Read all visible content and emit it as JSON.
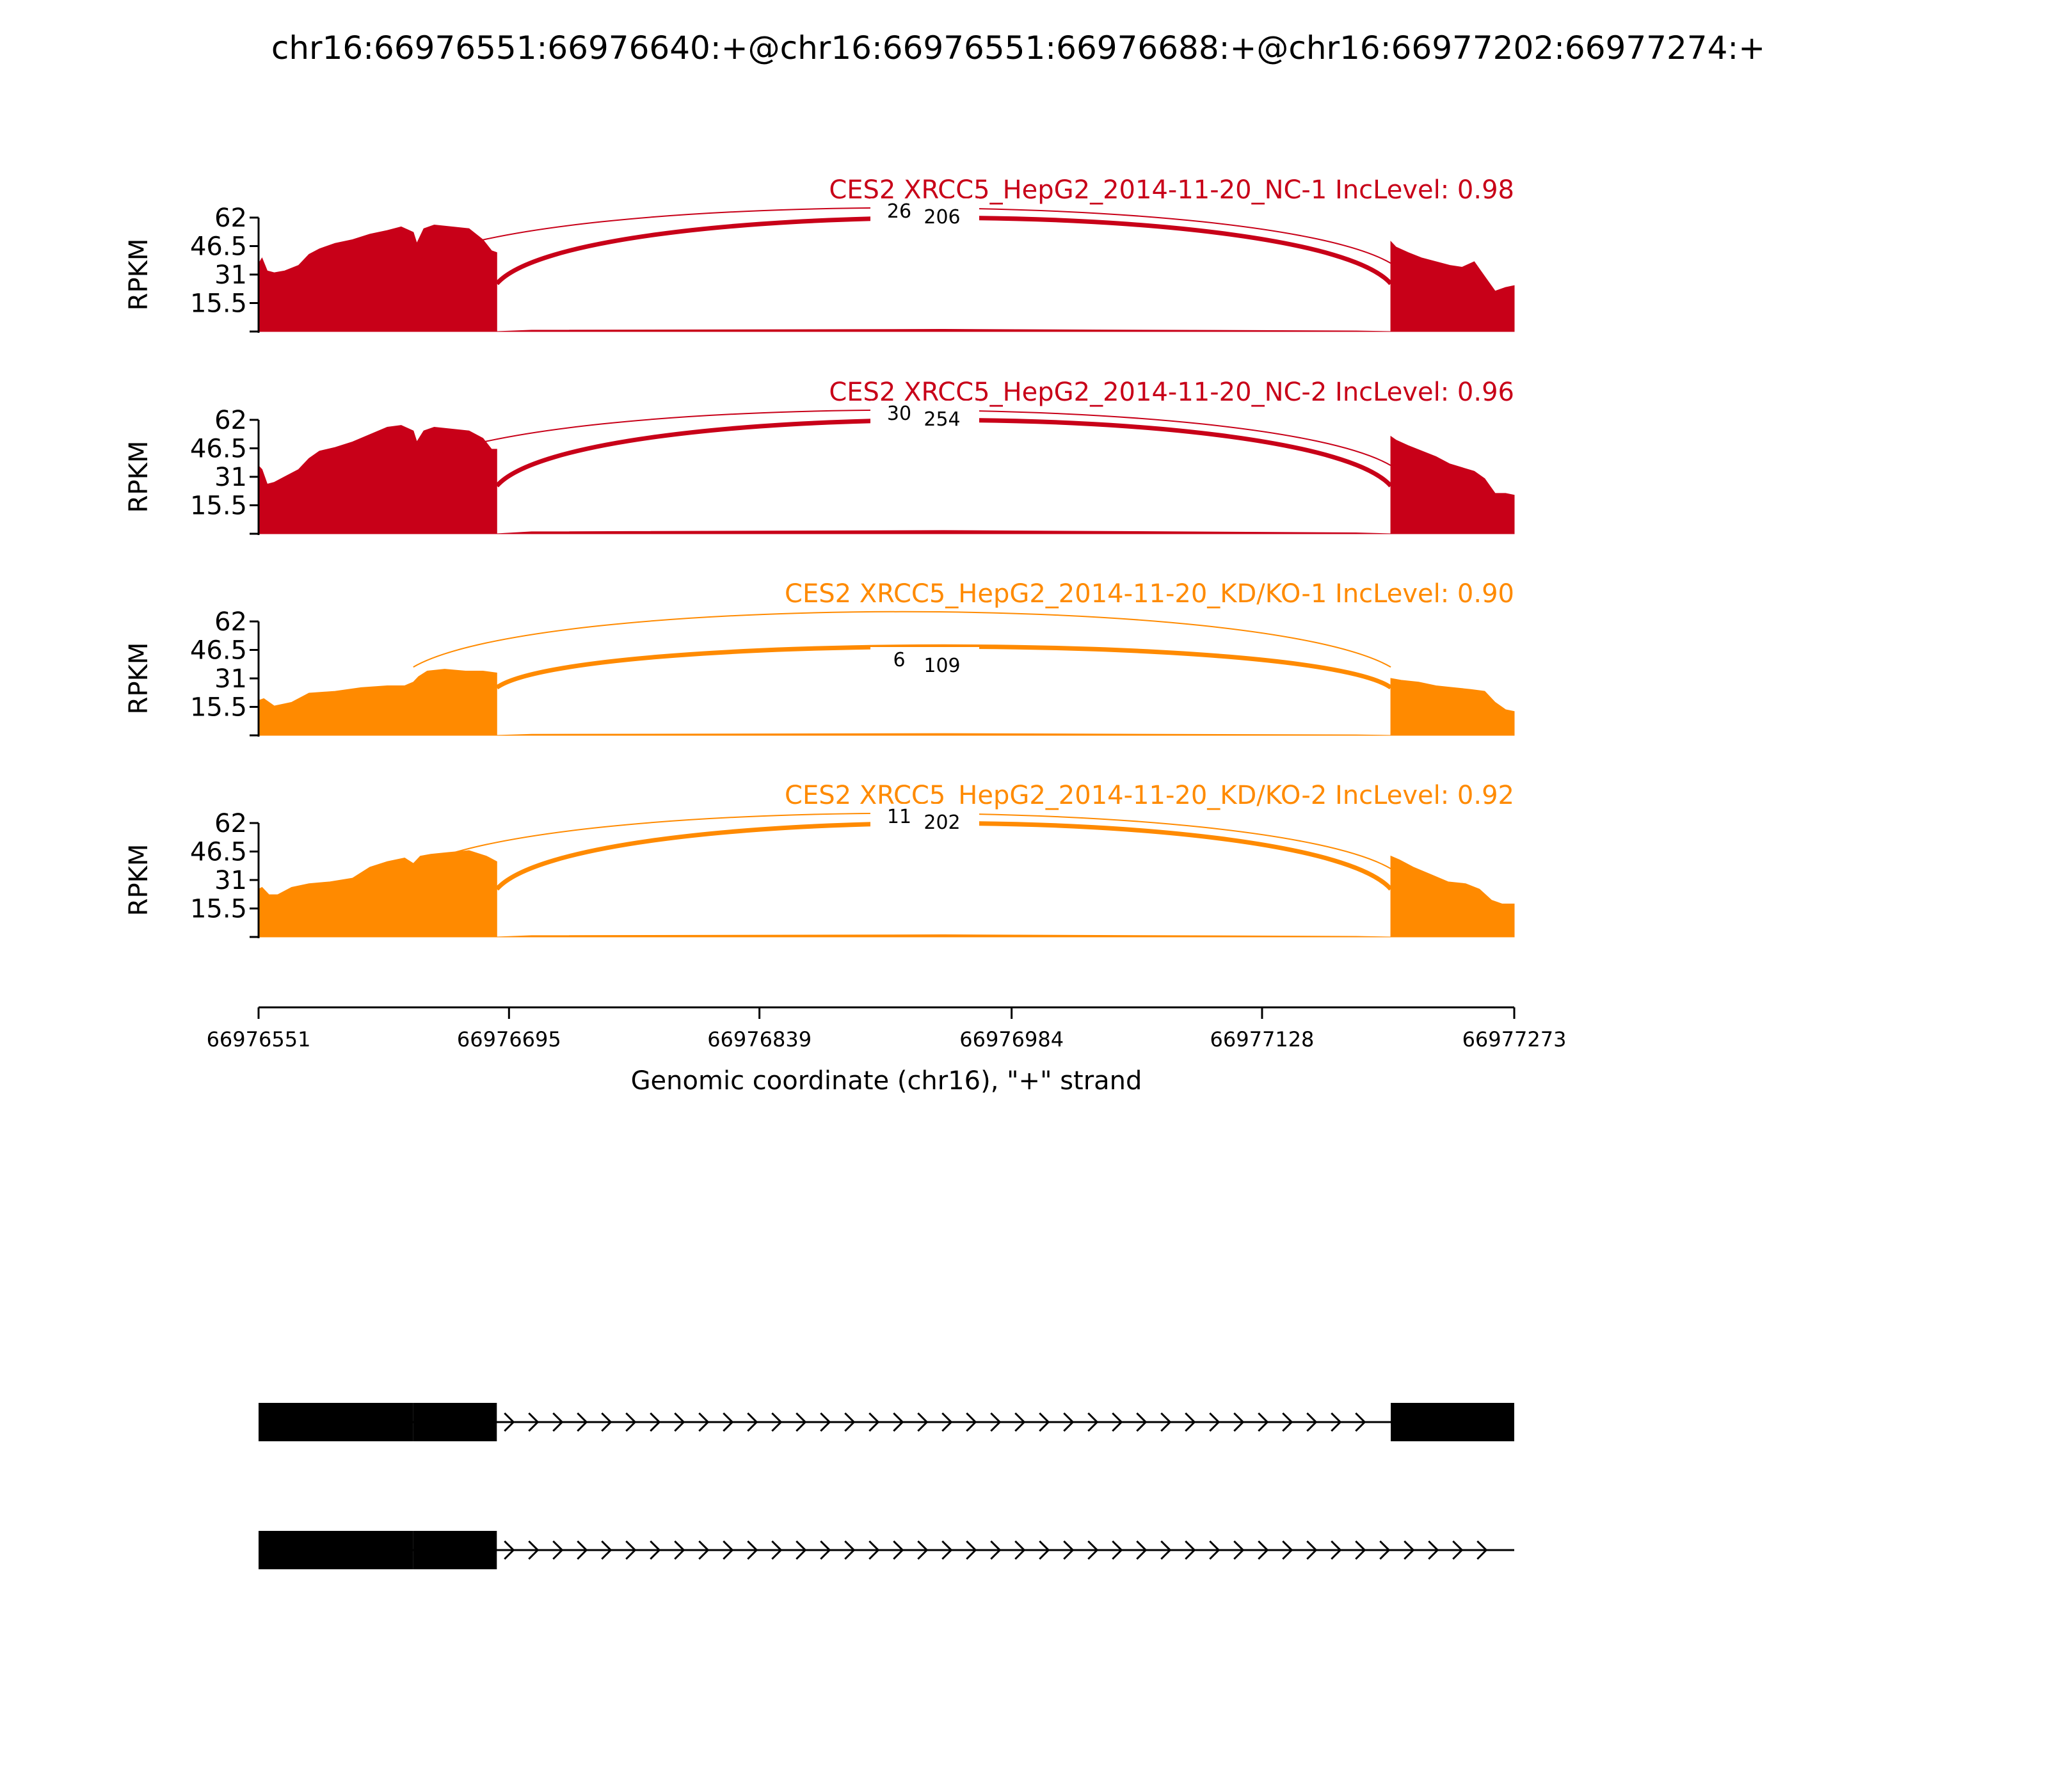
{
  "chart_data": {
    "type": "area",
    "title": "chr16:66976551:66976640:+@chr16:66976551:66976688:+@chr16:66977202:66977274:+",
    "ylabel": "RPKM",
    "xlabel": "Genomic coordinate (chr16), \"+\" strand",
    "ylim": [
      0,
      62
    ],
    "yticks": [
      "62",
      "46.5",
      "31",
      "15.5"
    ],
    "xlim": [
      66976551,
      66977273
    ],
    "xticks": [
      {
        "value": 66976551,
        "label": "66976551"
      },
      {
        "value": 66976695,
        "label": "66976695"
      },
      {
        "value": 66976839,
        "label": "66976839"
      },
      {
        "value": 66976984,
        "label": "66976984"
      },
      {
        "value": 66977128,
        "label": "66977128"
      },
      {
        "value": 66977273,
        "label": "66977273"
      }
    ],
    "colors": {
      "NC": "#C80018",
      "KD": "#FF8A00"
    },
    "series": [
      {
        "name": "CES2 XRCC5_HepG2_2014-11-20_NC-1 IncLevel: 0.98",
        "color": "#C80018",
        "coverage_x": [
          66976551,
          66976553,
          66976556,
          66976560,
          66976566,
          66976574,
          66976580,
          66976586,
          66976595,
          66976605,
          66976615,
          66976625,
          66976633,
          66976640,
          66976642,
          66976646,
          66976652,
          66976662,
          66976672,
          66976680,
          66976685,
          66976688,
          66977202,
          66977205,
          66977212,
          66977220,
          66977228,
          66977236,
          66977243,
          66977250,
          66977256,
          66977262,
          66977268,
          66977273
        ],
        "coverage_y": [
          37,
          40,
          33,
          32,
          33,
          36,
          42,
          45,
          48,
          50,
          53,
          55,
          57,
          54,
          48,
          56,
          58,
          57,
          56,
          50,
          44,
          43,
          49,
          46,
          43,
          40,
          38,
          36,
          35,
          38,
          30,
          22,
          24,
          25
        ],
        "intron_coverage": 1.2,
        "junctions": [
          {
            "label": "26",
            "start": 66976640,
            "end": 66977202
          },
          {
            "label": "206",
            "start": 66976688,
            "end": 66977202
          }
        ]
      },
      {
        "name": "CES2 XRCC5_HepG2_2014-11-20_NC-2 IncLevel: 0.96",
        "color": "#C80018",
        "coverage_x": [
          66976551,
          66976553,
          66976556,
          66976560,
          66976566,
          66976574,
          66976580,
          66976586,
          66976595,
          66976605,
          66976615,
          66976625,
          66976633,
          66976640,
          66976642,
          66976646,
          66976652,
          66976662,
          66976672,
          66976680,
          66976685,
          66976688,
          66977202,
          66977205,
          66977212,
          66977220,
          66977228,
          66977236,
          66977243,
          66977250,
          66977256,
          66977262,
          66977268,
          66977273
        ],
        "coverage_y": [
          37,
          35,
          27,
          28,
          31,
          35,
          41,
          45,
          47,
          50,
          54,
          58,
          59,
          56,
          50,
          56,
          58,
          57,
          56,
          52,
          46,
          46,
          53,
          51,
          48,
          45,
          42,
          38,
          36,
          34,
          30,
          22,
          22,
          21
        ],
        "intron_coverage": 1.8,
        "junctions": [
          {
            "label": "30",
            "start": 66976640,
            "end": 66977202
          },
          {
            "label": "254",
            "start": 66976688,
            "end": 66977202
          }
        ]
      },
      {
        "name": "CES2 XRCC5_HepG2_2014-11-20_KD/KO-1 IncLevel: 0.90",
        "color": "#FF8A00",
        "coverage_x": [
          66976551,
          66976554,
          66976560,
          66976570,
          66976580,
          66976595,
          66976610,
          66976625,
          66976635,
          66976640,
          66976643,
          66976648,
          66976658,
          66976670,
          66976680,
          66976688,
          66977202,
          66977208,
          66977218,
          66977228,
          66977238,
          66977248,
          66977256,
          66977262,
          66977268,
          66977273
        ],
        "coverage_y": [
          19,
          20,
          16,
          18,
          23,
          24,
          26,
          27,
          27,
          29,
          32,
          35,
          36,
          35,
          35,
          34,
          31,
          30,
          29,
          27,
          26,
          25,
          24,
          18,
          14,
          13
        ],
        "intron_coverage": 1.0,
        "junctions": [
          {
            "label": "6",
            "start": 66976640,
            "end": 66977202
          },
          {
            "label": "109",
            "start": 66976688,
            "end": 66977202
          }
        ]
      },
      {
        "name": "CES2 XRCC5_HepG2_2014-11-20_KD/KO-2 IncLevel: 0.92",
        "color": "#FF8A00",
        "coverage_x": [
          66976551,
          66976553,
          66976557,
          66976562,
          66976570,
          66976580,
          66976592,
          66976605,
          66976615,
          66976625,
          66976635,
          66976640,
          66976644,
          66976650,
          66976660,
          66976672,
          66976682,
          66976688,
          66977202,
          66977207,
          66977215,
          66977225,
          66977235,
          66977245,
          66977253,
          66977260,
          66977266,
          66977273
        ],
        "coverage_y": [
          26,
          27,
          23,
          23,
          27,
          29,
          30,
          32,
          38,
          41,
          43,
          40,
          44,
          45,
          46,
          47,
          44,
          41,
          44,
          42,
          38,
          34,
          30,
          29,
          26,
          20,
          18,
          18
        ],
        "intron_coverage": 1.2,
        "junctions": [
          {
            "label": "11",
            "start": 66976640,
            "end": 66977202
          },
          {
            "label": "202",
            "start": 66976688,
            "end": 66977202
          }
        ]
      }
    ],
    "gene_models": [
      {
        "exons": [
          [
            66976551,
            66976640
          ],
          [
            66976640,
            66976688
          ],
          [
            66977202,
            66977273
          ]
        ]
      },
      {
        "exons": [
          [
            66976551,
            66976640
          ],
          [
            66976640,
            66976688
          ]
        ]
      }
    ]
  }
}
